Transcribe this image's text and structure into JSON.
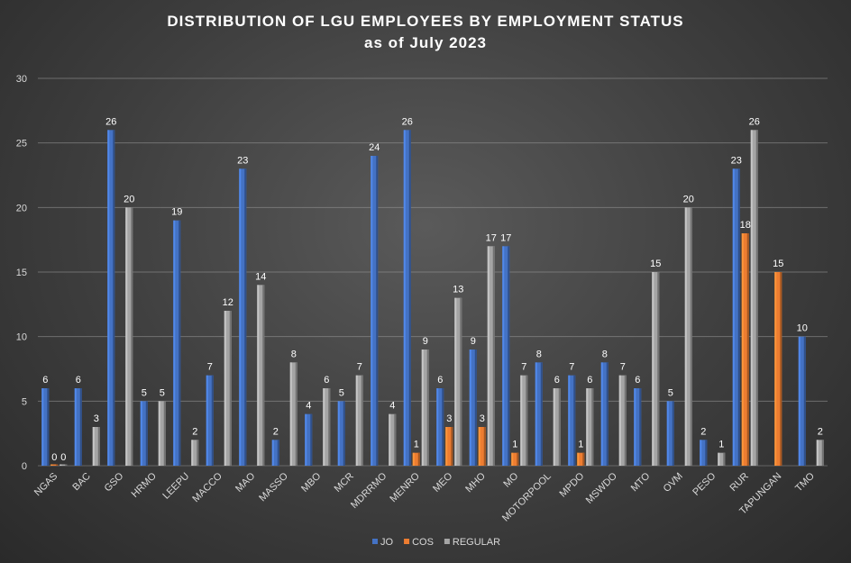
{
  "chart_data": {
    "type": "bar",
    "title": "DISTRIBUTION  OF LGU EMPLOYEES  BY EMPLOYMENT  STATUS",
    "subtitle": "as of July 2023",
    "xlabel": "",
    "ylabel": "",
    "ylim": [
      0,
      30
    ],
    "yticks": [
      0,
      5,
      10,
      15,
      20,
      25,
      30
    ],
    "grid": true,
    "legend_position": "bottom",
    "categories": [
      "NGAS",
      "BAC",
      "GSO",
      "HRMO",
      "LEEPU",
      "MACCO",
      "MAO",
      "MASSO",
      "MBO",
      "MCR",
      "MDRRMO",
      "MENRO",
      "MEO",
      "MHO",
      "MO",
      "MOTORPOOL",
      "MPDO",
      "MSWDO",
      "MTO",
      "OVM",
      "PESO",
      "RUR",
      "TAPUNGAN",
      "TMO"
    ],
    "series": [
      {
        "name": "JO",
        "color": "#4472c4",
        "values": [
          6,
          6,
          26,
          5,
          19,
          7,
          23,
          2,
          4,
          5,
          24,
          26,
          6,
          9,
          17,
          8,
          7,
          8,
          6,
          5,
          2,
          23,
          null,
          10
        ]
      },
      {
        "name": "COS",
        "color": "#ed7d31",
        "values": [
          0,
          null,
          null,
          null,
          null,
          null,
          null,
          null,
          null,
          null,
          null,
          1,
          3,
          3,
          1,
          null,
          1,
          null,
          null,
          null,
          null,
          18,
          15,
          null
        ]
      },
      {
        "name": "REGULAR",
        "color": "#a5a5a5",
        "values": [
          0,
          3,
          20,
          5,
          2,
          12,
          14,
          8,
          6,
          7,
          4,
          9,
          13,
          17,
          7,
          6,
          6,
          7,
          15,
          20,
          1,
          26,
          null,
          2
        ]
      }
    ]
  }
}
